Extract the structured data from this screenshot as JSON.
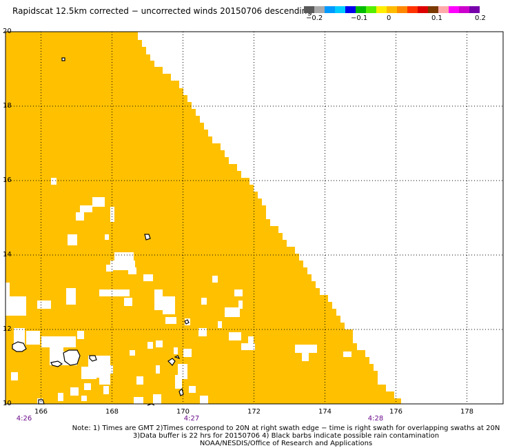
{
  "title": "Rapidscat 12.5km corrected − uncorrected winds 20150706 descending",
  "colorbar": {
    "colors": [
      "#5a5a5a",
      "#a9a9a9",
      "#0099ff",
      "#00ccff",
      "#0000ee",
      "#00bb00",
      "#55ee00",
      "#ffee00",
      "#ffbb00",
      "#ff8800",
      "#ff3300",
      "#dd0000",
      "#7a3a00",
      "#ffaaaa",
      "#ff00ff",
      "#cc00cc",
      "#7700aa"
    ],
    "tick_labels": [
      "−0.2",
      "−0.1",
      "0",
      "0.1",
      "0.2"
    ]
  },
  "map": {
    "lon_labels": [
      "166",
      "168",
      "170",
      "172",
      "174",
      "176",
      "178"
    ],
    "lat_labels": [
      "20",
      "18",
      "16",
      "14",
      "12",
      "10"
    ],
    "time_labels": [
      "4:26",
      "4:27",
      "4:28"
    ],
    "fill_color": "#ffc000",
    "grid_color": "#000000"
  },
  "notes": [
    "Note: 1) Times are GMT 2)Times correspond to 20N at right swath edge − time is right swath for overlapping swaths at 20N",
    "3)Data buffer is 22 hrs for 20150706 4) Black barbs indicate possible rain contamination",
    "NOAA/NESDIS/Office of Research and Applications"
  ]
}
